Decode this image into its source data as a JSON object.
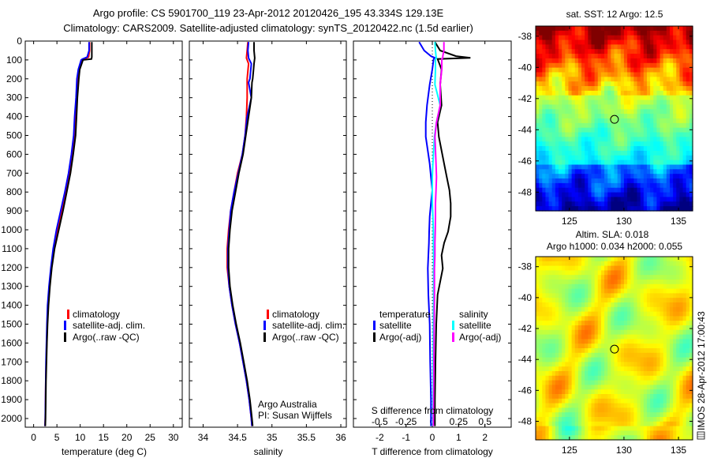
{
  "title": {
    "line1": "Argo profile: CS 5901700_119 23-Apr-2012 20120426_195 43.334S 129.13E",
    "line2": "Climatology: CARS2009. Satellite-adjusted climatology: synTS_20120422.nc (1.5d earlier)"
  },
  "colors": {
    "climatology": "#ff0000",
    "satellite": "#0000ff",
    "argo": "#000000",
    "sal_satellite": "#00ffff",
    "sal_argo": "#ff00ff"
  },
  "depth_axis": {
    "ylim": [
      0,
      2046
    ],
    "ticks": [
      0,
      100,
      200,
      300,
      400,
      500,
      600,
      700,
      800,
      900,
      1000,
      1100,
      1200,
      1300,
      1400,
      1500,
      1600,
      1700,
      1800,
      1900,
      2000
    ],
    "direction": "reversed"
  },
  "chart_data": [
    {
      "type": "line",
      "xlabel": "temperature (deg C)",
      "xlim": [
        -1.8,
        31.9
      ],
      "xticks": [
        0,
        5,
        10,
        15,
        20,
        25,
        30
      ],
      "legend": [
        "climatology",
        "satellite-adj. clim.",
        "Argo(..raw -QC)"
      ],
      "depth": [
        5,
        50,
        85,
        95,
        100,
        150,
        200,
        300,
        400,
        500,
        600,
        700,
        800,
        900,
        1000,
        1100,
        1200,
        1300,
        1400,
        1500,
        1600,
        1700,
        1800,
        1900,
        2000,
        2040
      ],
      "series": [
        {
          "name": "climatology",
          "color": "#ff0000",
          "values": [
            12.0,
            12.0,
            11.8,
            10.8,
            10.4,
            9.8,
            9.5,
            9.2,
            9.0,
            8.8,
            8.3,
            7.7,
            6.9,
            6.0,
            5.1,
            4.3,
            3.8,
            3.4,
            3.1,
            2.9,
            2.8,
            2.7,
            2.6,
            2.55,
            2.5,
            2.45
          ]
        },
        {
          "name": "satellite-adj. clim.",
          "color": "#0000ff",
          "values": [
            11.9,
            11.9,
            11.5,
            10.5,
            10.2,
            9.6,
            9.3,
            9.1,
            8.8,
            8.6,
            8.1,
            7.5,
            6.7,
            5.8,
            4.9,
            4.2,
            3.7,
            3.3,
            3.0,
            2.85,
            2.75,
            2.65,
            2.6,
            2.55,
            2.5,
            2.45
          ]
        },
        {
          "name": "Argo(..raw -QC)",
          "color": "#000000",
          "values": [
            12.5,
            12.5,
            12.5,
            12.4,
            10.6,
            9.9,
            9.7,
            9.4,
            9.2,
            9.0,
            8.5,
            7.9,
            7.1,
            6.3,
            5.4,
            4.5,
            3.9,
            3.5,
            3.2,
            3.0,
            2.85,
            2.75,
            2.65,
            2.6,
            2.55,
            2.5
          ]
        }
      ]
    },
    {
      "type": "line",
      "xlabel": "salinity",
      "xlim": [
        33.8,
        36.08
      ],
      "xticks": [
        34,
        34.5,
        35,
        35.5,
        36
      ],
      "legend": [
        "climatology",
        "satellite-adj. clim.",
        "Argo(..raw -QC)"
      ],
      "annotations": [
        "Argo Australia",
        "PI: Susan Wijffels"
      ],
      "depth": [
        5,
        50,
        90,
        120,
        160,
        200,
        220,
        300,
        400,
        500,
        600,
        700,
        800,
        900,
        1000,
        1100,
        1200,
        1300,
        1400,
        1500,
        1600,
        1700,
        1800,
        1900,
        2000,
        2040
      ],
      "series": [
        {
          "name": "climatology",
          "color": "#ff0000",
          "values": [
            34.65,
            34.64,
            34.63,
            34.66,
            34.65,
            34.64,
            34.64,
            34.64,
            34.63,
            34.61,
            34.57,
            34.5,
            34.45,
            34.4,
            34.37,
            34.35,
            34.35,
            34.38,
            34.42,
            34.47,
            34.53,
            34.58,
            34.63,
            34.67,
            34.7,
            34.71
          ]
        },
        {
          "name": "satellite-adj. clim.",
          "color": "#0000ff",
          "values": [
            34.66,
            34.65,
            34.66,
            34.7,
            34.69,
            34.68,
            34.66,
            34.7,
            34.64,
            34.61,
            34.57,
            34.51,
            34.45,
            34.4,
            34.38,
            34.36,
            34.36,
            34.38,
            34.42,
            34.47,
            34.53,
            34.58,
            34.63,
            34.67,
            34.7,
            34.71
          ]
        },
        {
          "name": "Argo(..raw -QC)",
          "color": "#000000",
          "values": [
            34.74,
            34.74,
            34.75,
            34.74,
            34.73,
            34.72,
            34.71,
            34.7,
            34.66,
            34.62,
            34.58,
            34.52,
            34.47,
            34.42,
            34.39,
            34.37,
            34.37,
            34.39,
            34.43,
            34.48,
            34.54,
            34.59,
            34.64,
            34.68,
            34.71,
            34.72
          ]
        }
      ]
    },
    {
      "type": "line",
      "xlabel": "T difference from climatology",
      "xlim": [
        -3,
        3
      ],
      "xticks": [
        -2,
        -1,
        0,
        1,
        2
      ],
      "x2label": "S difference from climatology",
      "x2ticks": [
        "-0.5",
        "-0.25",
        "0",
        "0.25",
        "0.5"
      ],
      "x2_scale": 4,
      "legend_headers": [
        "temperature",
        "salinity"
      ],
      "legend": [
        "satellite",
        "Argo(-adj)",
        "satellite",
        "Argo(-adj)"
      ],
      "depth": [
        5,
        50,
        80,
        89,
        95,
        150,
        230,
        340,
        430,
        507,
        650,
        720,
        790,
        860,
        930,
        1010,
        1070,
        1135,
        1205,
        1344,
        1500,
        1700,
        1900,
        2040
      ],
      "series": [
        {
          "name": "temperature satellite",
          "color": "#0000ff",
          "units": "T",
          "values": [
            -0.5,
            -0.31,
            -0.05,
            0.1,
            0.05,
            0.0,
            -0.1,
            -0.2,
            -0.25,
            -0.25,
            -0.1,
            -0.05,
            0.0,
            -0.05,
            -0.1,
            -0.12,
            -0.13,
            -0.15,
            -0.17,
            -0.15,
            -0.1,
            -0.08,
            -0.05,
            -0.05
          ]
        },
        {
          "name": "temperature Argo(-adj)",
          "color": "#000000",
          "units": "T",
          "values": [
            0.1,
            0.3,
            0.9,
            1.45,
            0.2,
            0.35,
            0.3,
            0.35,
            0.2,
            0.25,
            0.45,
            0.55,
            0.65,
            0.7,
            0.7,
            0.6,
            0.45,
            0.35,
            0.4,
            0.2,
            0.15,
            0.12,
            0.1,
            0.1
          ]
        },
        {
          "name": "salinity satellite",
          "color": "#00ffff",
          "units": "S",
          "values": [
            0.025,
            0.03,
            0.035,
            0.04,
            0.03,
            0.03,
            0.025,
            0.075,
            0.04,
            0.02,
            0.005,
            0.0,
            0.0,
            0.0,
            0.005,
            0.01,
            0.01,
            0.012,
            0.012,
            0.012,
            0.01,
            0.008,
            0.005,
            0.005
          ]
        },
        {
          "name": "salinity Argo(-adj)",
          "color": "#ff00ff",
          "units": "S",
          "values": [
            0.11,
            0.11,
            0.1,
            0.1,
            0.09,
            0.09,
            0.075,
            0.075,
            0.04,
            0.025,
            0.035,
            0.04,
            0.035,
            0.03,
            0.03,
            0.028,
            0.025,
            0.025,
            0.02,
            0.02,
            0.018,
            0.015,
            0.012,
            0.01
          ]
        }
      ]
    },
    {
      "type": "heatmap",
      "title": "sat. SST: 12 Argo: 12.5",
      "xlim": [
        121.9,
        136.3
      ],
      "ylim": [
        -49.2,
        -37.35
      ],
      "xticks": [
        125,
        130,
        135
      ],
      "yticks": [
        -38,
        -40,
        -42,
        -44,
        -46,
        -48
      ],
      "marker": {
        "lon": 129.13,
        "lat": -43.334
      },
      "colormap": "jet",
      "field": "sst"
    },
    {
      "type": "heatmap",
      "title": "Altim. SLA: 0.018",
      "subtitle": "Argo h1000: 0.034 h2000: 0.055",
      "xlim": [
        121.9,
        136.3
      ],
      "ylim": [
        -49.2,
        -37.35
      ],
      "xticks": [
        125,
        130,
        135
      ],
      "yticks": [
        -38,
        -40,
        -42,
        -44,
        -46,
        -48
      ],
      "marker": {
        "lon": 129.13,
        "lat": -43.334
      },
      "colormap": "jet",
      "field": "sla"
    }
  ],
  "footer": {
    "stamp": "IMOS 28-Apr-2012 17:00:43",
    "logo_icon": "imos-logo-icon"
  }
}
